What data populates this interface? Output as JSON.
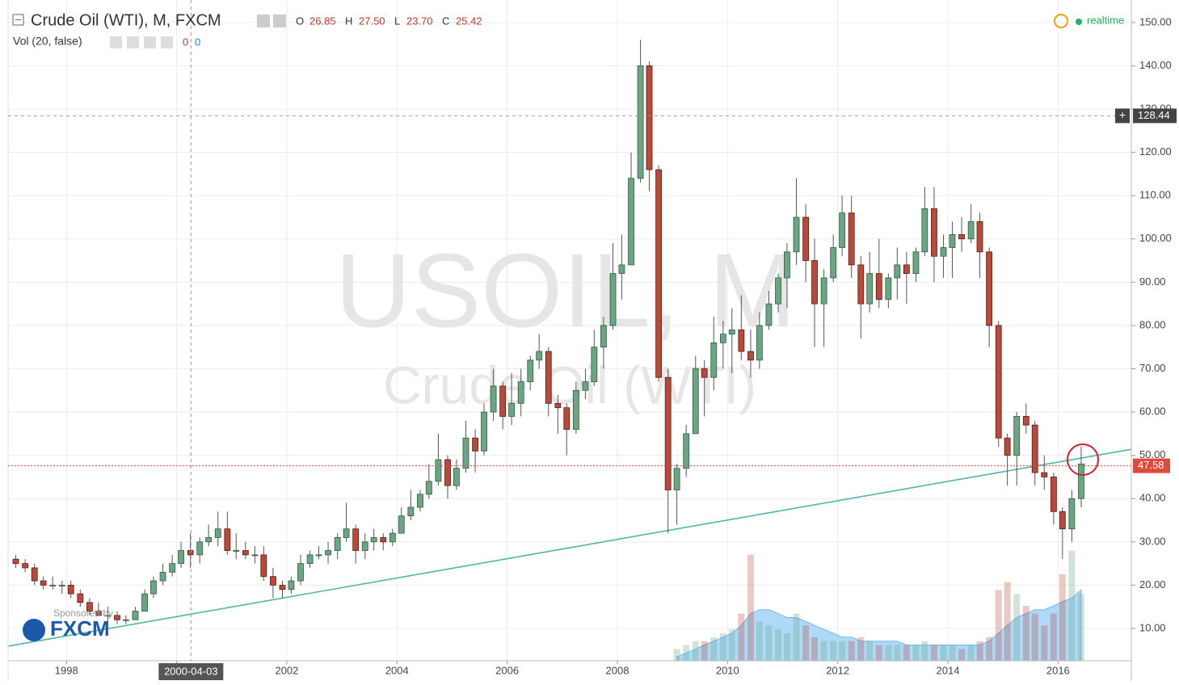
{
  "chart_data": {
    "type": "candlestick",
    "header": {
      "title": "Crude Oil (WTI), M, FXCM",
      "o_key": "O",
      "o": "26.85",
      "h_key": "H",
      "h": "27.50",
      "l_key": "L",
      "l": "23.70",
      "c_key": "C",
      "c": "25.42",
      "vol_title": "Vol (20, false)",
      "vol_a": "0",
      "vol_b": "0",
      "status": "realtime"
    },
    "watermark": [
      "USOIL, M",
      "Crude Oil (WTI)"
    ],
    "sponsor": {
      "text": "Sponsored by",
      "logo": "FXCM"
    },
    "xlim": [
      1996.94,
      2017.33
    ],
    "ylim": [
      2.53,
      155.2
    ],
    "xticks": [
      1998,
      2000,
      2002,
      2004,
      2006,
      2008,
      2010,
      2012,
      2014,
      2016
    ],
    "yticks": [
      {
        "value": 10,
        "label": "10.00"
      },
      {
        "value": 20,
        "label": "20.00"
      },
      {
        "value": 30,
        "label": "30.00"
      },
      {
        "value": 40,
        "label": "40.00"
      },
      {
        "value": 50,
        "label": "50.00"
      },
      {
        "value": 60,
        "label": "60.00"
      },
      {
        "value": 70,
        "label": "70.00"
      },
      {
        "value": 80,
        "label": "80.00"
      },
      {
        "value": 90,
        "label": "90.00"
      },
      {
        "value": 100,
        "label": "100.00"
      },
      {
        "value": 110,
        "label": "110.00"
      },
      {
        "value": 120,
        "label": "120.00"
      },
      {
        "value": 130,
        "label": "130.00"
      },
      {
        "value": 140,
        "label": "140.00"
      },
      {
        "value": 150,
        "label": "150.00"
      }
    ],
    "grid": true,
    "up_color": "#6ba583",
    "down_color": "#b84a3c",
    "crosshair": {
      "x": 2000.26,
      "label": "2000-04-03",
      "price": 128.44,
      "plus": "+"
    },
    "last_price": 47.58,
    "last_color": "#e04a3c",
    "trendline": {
      "x": [
        1996.94,
        2017.33
      ],
      "y": [
        5.9,
        51.4
      ],
      "color": "#4db6a4"
    },
    "x": [
      1997.08,
      1997.25,
      1997.42,
      1997.58,
      1997.75,
      1997.92,
      1998.08,
      1998.25,
      1998.42,
      1998.58,
      1998.75,
      1998.92,
      1999.08,
      1999.25,
      1999.42,
      1999.58,
      1999.75,
      1999.92,
      2000.08,
      2000.25,
      2000.42,
      2000.58,
      2000.75,
      2000.92,
      2001.08,
      2001.25,
      2001.42,
      2001.58,
      2001.75,
      2001.92,
      2002.08,
      2002.25,
      2002.42,
      2002.58,
      2002.75,
      2002.92,
      2003.08,
      2003.25,
      2003.42,
      2003.58,
      2003.75,
      2003.92,
      2004.08,
      2004.25,
      2004.42,
      2004.58,
      2004.75,
      2004.92,
      2005.08,
      2005.25,
      2005.42,
      2005.58,
      2005.75,
      2005.92,
      2006.08,
      2006.25,
      2006.42,
      2006.58,
      2006.75,
      2006.92,
      2007.08,
      2007.25,
      2007.42,
      2007.58,
      2007.75,
      2007.92,
      2008.08,
      2008.25,
      2008.42,
      2008.58,
      2008.75,
      2008.92,
      2009.08,
      2009.25,
      2009.42,
      2009.58,
      2009.75,
      2009.92,
      2010.08,
      2010.25,
      2010.42,
      2010.58,
      2010.75,
      2010.92,
      2011.08,
      2011.25,
      2011.42,
      2011.58,
      2011.75,
      2011.92,
      2012.08,
      2012.25,
      2012.42,
      2012.58,
      2012.75,
      2012.92,
      2013.08,
      2013.25,
      2013.42,
      2013.58,
      2013.75,
      2013.92,
      2014.08,
      2014.25,
      2014.42,
      2014.58,
      2014.75,
      2014.92,
      2015.08,
      2015.25,
      2015.42,
      2015.58,
      2015.75,
      2015.92,
      2016.08,
      2016.25,
      2016.42
    ],
    "candles": [
      [
        26,
        27,
        24,
        25
      ],
      [
        25,
        26,
        23,
        24
      ],
      [
        24,
        25,
        20,
        21
      ],
      [
        21,
        22,
        19,
        20
      ],
      [
        20,
        22,
        19,
        20
      ],
      [
        20,
        21,
        18,
        20
      ],
      [
        20,
        21,
        17,
        18
      ],
      [
        18,
        19,
        15,
        16
      ],
      [
        16,
        17,
        13,
        14
      ],
      [
        14,
        16,
        13,
        13
      ],
      [
        13,
        15,
        11,
        13
      ],
      [
        13,
        14,
        11,
        12
      ],
      [
        12,
        13,
        11,
        12
      ],
      [
        12,
        15,
        12,
        14
      ],
      [
        14,
        19,
        14,
        18
      ],
      [
        18,
        22,
        17,
        21
      ],
      [
        21,
        25,
        20,
        23
      ],
      [
        23,
        27,
        22,
        25
      ],
      [
        25,
        30,
        24,
        28
      ],
      [
        28,
        32,
        24,
        27
      ],
      [
        27,
        31,
        25,
        30
      ],
      [
        30,
        34,
        29,
        31
      ],
      [
        31,
        37,
        29,
        33
      ],
      [
        33,
        37,
        27,
        28
      ],
      [
        28,
        32,
        26,
        28
      ],
      [
        28,
        30,
        26,
        27
      ],
      [
        27,
        29,
        25,
        27
      ],
      [
        27,
        29,
        21,
        22
      ],
      [
        22,
        24,
        17,
        20
      ],
      [
        20,
        21,
        17,
        19
      ],
      [
        19,
        22,
        18,
        21
      ],
      [
        21,
        27,
        20,
        25
      ],
      [
        25,
        28,
        24,
        27
      ],
      [
        27,
        29,
        26,
        27
      ],
      [
        27,
        30,
        25,
        28
      ],
      [
        28,
        32,
        26,
        31
      ],
      [
        31,
        39,
        30,
        33
      ],
      [
        33,
        34,
        25,
        28
      ],
      [
        28,
        32,
        26,
        30
      ],
      [
        30,
        33,
        28,
        31
      ],
      [
        31,
        32,
        28,
        30
      ],
      [
        30,
        33,
        29,
        32
      ],
      [
        32,
        38,
        32,
        36
      ],
      [
        36,
        42,
        35,
        38
      ],
      [
        38,
        42,
        37,
        41
      ],
      [
        41,
        48,
        40,
        44
      ],
      [
        44,
        55,
        43,
        49
      ],
      [
        49,
        50,
        40,
        43
      ],
      [
        43,
        49,
        42,
        47
      ],
      [
        47,
        58,
        46,
        54
      ],
      [
        54,
        56,
        46,
        51
      ],
      [
        51,
        62,
        50,
        60
      ],
      [
        60,
        70,
        58,
        66
      ],
      [
        66,
        67,
        56,
        59
      ],
      [
        59,
        69,
        57,
        62
      ],
      [
        62,
        70,
        59,
        67
      ],
      [
        67,
        73,
        65,
        72
      ],
      [
        72,
        78,
        70,
        74
      ],
      [
        74,
        75,
        59,
        62
      ],
      [
        62,
        64,
        55,
        61
      ],
      [
        61,
        62,
        50,
        56
      ],
      [
        56,
        67,
        55,
        65
      ],
      [
        65,
        70,
        63,
        67
      ],
      [
        67,
        79,
        66,
        75
      ],
      [
        75,
        82,
        70,
        80
      ],
      [
        80,
        99,
        79,
        92
      ],
      [
        92,
        101,
        86,
        94
      ],
      [
        94,
        120,
        94,
        114
      ],
      [
        114,
        146,
        113,
        140
      ],
      [
        140,
        141,
        111,
        116
      ],
      [
        116,
        117,
        67,
        68
      ],
      [
        68,
        70,
        32,
        42
      ],
      [
        42,
        48,
        34,
        47
      ],
      [
        47,
        57,
        45,
        55
      ],
      [
        55,
        73,
        55,
        70
      ],
      [
        70,
        72,
        59,
        68
      ],
      [
        68,
        82,
        65,
        76
      ],
      [
        76,
        81,
        70,
        78
      ],
      [
        78,
        84,
        69,
        79
      ],
      [
        79,
        87,
        72,
        74
      ],
      [
        74,
        79,
        68,
        72
      ],
      [
        72,
        83,
        70,
        80
      ],
      [
        80,
        88,
        79,
        85
      ],
      [
        85,
        92,
        83,
        91
      ],
      [
        91,
        99,
        84,
        97
      ],
      [
        97,
        114,
        94,
        105
      ],
      [
        105,
        108,
        90,
        95
      ],
      [
        95,
        100,
        75,
        85
      ],
      [
        85,
        93,
        75,
        91
      ],
      [
        91,
        101,
        90,
        98
      ],
      [
        98,
        110,
        96,
        106
      ],
      [
        106,
        110,
        91,
        94
      ],
      [
        94,
        96,
        77,
        85
      ],
      [
        85,
        97,
        83,
        92
      ],
      [
        92,
        100,
        84,
        86
      ],
      [
        86,
        92,
        84,
        91
      ],
      [
        91,
        98,
        86,
        94
      ],
      [
        94,
        97,
        85,
        92
      ],
      [
        92,
        98,
        90,
        97
      ],
      [
        97,
        112,
        96,
        107
      ],
      [
        107,
        112,
        90,
        96
      ],
      [
        96,
        101,
        91,
        98
      ],
      [
        98,
        104,
        91,
        101
      ],
      [
        101,
        105,
        97,
        100
      ],
      [
        100,
        108,
        99,
        104
      ],
      [
        104,
        106,
        91,
        97
      ],
      [
        97,
        98,
        75,
        80
      ],
      [
        80,
        81,
        52,
        54
      ],
      [
        54,
        55,
        43,
        50
      ],
      [
        50,
        60,
        43,
        59
      ],
      [
        59,
        62,
        55,
        57
      ],
      [
        57,
        58,
        43,
        46
      ],
      [
        46,
        50,
        42,
        45
      ],
      [
        45,
        46,
        34,
        37
      ],
      [
        37,
        38,
        26,
        33
      ],
      [
        33,
        42,
        30,
        40
      ],
      [
        40,
        52,
        38,
        48
      ]
    ],
    "volume": {
      "vlim": [
        0,
        30
      ],
      "ma_color": "#9ad0f5",
      "x": [
        2009.08,
        2009.25,
        2009.42,
        2009.58,
        2009.75,
        2009.92,
        2010.08,
        2010.25,
        2010.42,
        2010.58,
        2010.75,
        2010.92,
        2011.08,
        2011.25,
        2011.42,
        2011.58,
        2011.75,
        2011.92,
        2012.08,
        2012.25,
        2012.42,
        2012.58,
        2012.75,
        2012.92,
        2013.08,
        2013.25,
        2013.42,
        2013.58,
        2013.75,
        2013.92,
        2014.08,
        2014.25,
        2014.42,
        2014.58,
        2014.75,
        2014.92,
        2015.08,
        2015.25,
        2015.42,
        2015.58,
        2015.75,
        2015.92,
        2016.08,
        2016.25,
        2016.42
      ],
      "values": [
        3,
        4,
        5,
        5,
        6,
        7,
        8,
        12,
        27,
        10,
        9,
        8,
        7,
        12,
        9,
        6,
        5,
        5,
        5,
        5,
        6,
        5,
        4,
        4,
        4,
        4,
        4,
        5,
        4,
        4,
        4,
        3,
        4,
        5,
        6,
        18,
        20,
        17,
        14,
        12,
        9,
        12,
        22,
        28,
        17
      ],
      "ma": [
        1,
        2,
        3,
        4,
        5,
        6,
        7,
        9,
        12,
        13,
        13,
        12,
        11,
        11,
        10,
        9,
        8,
        7,
        6,
        6,
        5,
        5,
        5,
        5,
        5,
        4,
        4,
        4,
        4,
        4,
        4,
        4,
        4,
        4,
        5,
        7,
        9,
        11,
        12,
        13,
        13,
        14,
        15,
        16,
        18
      ]
    }
  }
}
